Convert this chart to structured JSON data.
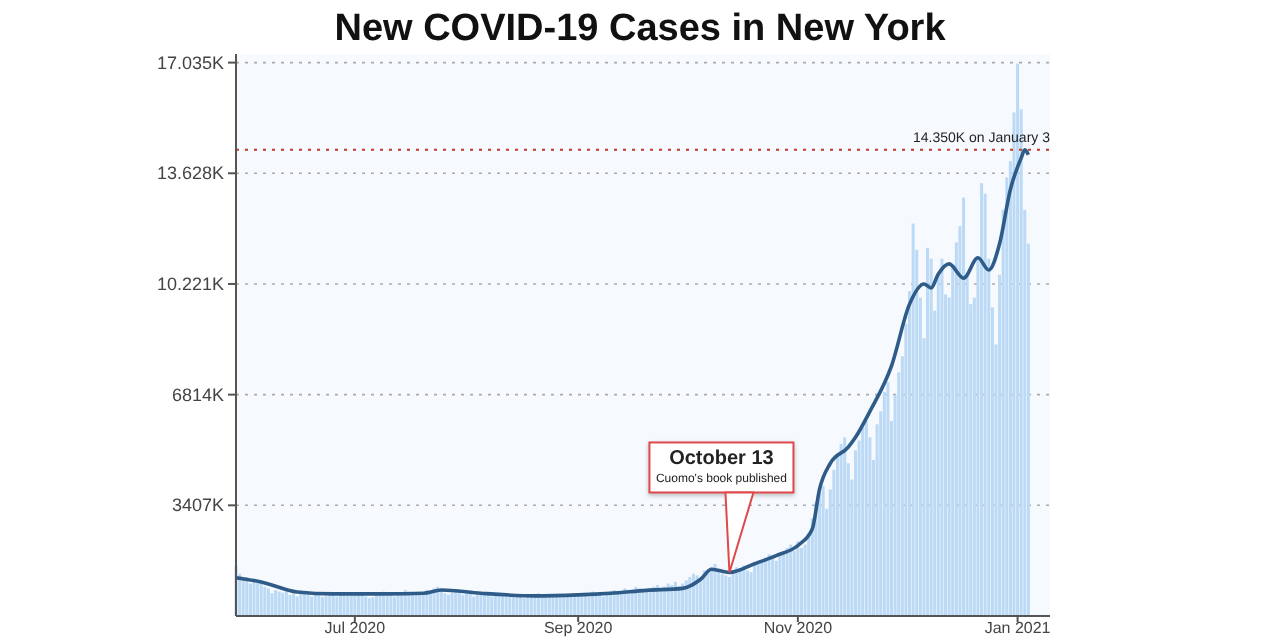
{
  "chart_data": {
    "type": "bar",
    "title": "New COVID-19 Cases in New York",
    "x": [
      "2020-05-29",
      "2020-05-30",
      "2020-05-31",
      "2020-06-01",
      "2020-06-02",
      "2020-06-03",
      "2020-06-04",
      "2020-06-05",
      "2020-06-06",
      "2020-06-07",
      "2020-06-08",
      "2020-06-09",
      "2020-06-10",
      "2020-06-11",
      "2020-06-12",
      "2020-06-13",
      "2020-06-14",
      "2020-06-15",
      "2020-06-16",
      "2020-06-17",
      "2020-06-18",
      "2020-06-19",
      "2020-06-20",
      "2020-06-21",
      "2020-06-22",
      "2020-06-23",
      "2020-06-24",
      "2020-06-25",
      "2020-06-26",
      "2020-06-27",
      "2020-06-28",
      "2020-06-29",
      "2020-06-30",
      "2020-07-01",
      "2020-07-02",
      "2020-07-03",
      "2020-07-04",
      "2020-07-05",
      "2020-07-06",
      "2020-07-07",
      "2020-07-08",
      "2020-07-09",
      "2020-07-10",
      "2020-07-11",
      "2020-07-12",
      "2020-07-13",
      "2020-07-14",
      "2020-07-15",
      "2020-07-16",
      "2020-07-17",
      "2020-07-18",
      "2020-07-19",
      "2020-07-20",
      "2020-07-21",
      "2020-07-22",
      "2020-07-23",
      "2020-07-24",
      "2020-07-25",
      "2020-07-26",
      "2020-07-27",
      "2020-07-28",
      "2020-07-29",
      "2020-07-30",
      "2020-07-31",
      "2020-08-01",
      "2020-08-02",
      "2020-08-03",
      "2020-08-04",
      "2020-08-05",
      "2020-08-06",
      "2020-08-07",
      "2020-08-08",
      "2020-08-09",
      "2020-08-10",
      "2020-08-11",
      "2020-08-12",
      "2020-08-13",
      "2020-08-14",
      "2020-08-15",
      "2020-08-16",
      "2020-08-17",
      "2020-08-18",
      "2020-08-19",
      "2020-08-20",
      "2020-08-21",
      "2020-08-22",
      "2020-08-23",
      "2020-08-24",
      "2020-08-25",
      "2020-08-26",
      "2020-08-27",
      "2020-08-28",
      "2020-08-29",
      "2020-08-30",
      "2020-08-31",
      "2020-09-01",
      "2020-09-02",
      "2020-09-03",
      "2020-09-04",
      "2020-09-05",
      "2020-09-06",
      "2020-09-07",
      "2020-09-08",
      "2020-09-09",
      "2020-09-10",
      "2020-09-11",
      "2020-09-12",
      "2020-09-13",
      "2020-09-14",
      "2020-09-15",
      "2020-09-16",
      "2020-09-17",
      "2020-09-18",
      "2020-09-19",
      "2020-09-20",
      "2020-09-21",
      "2020-09-22",
      "2020-09-23",
      "2020-09-24",
      "2020-09-25",
      "2020-09-26",
      "2020-09-27",
      "2020-09-28",
      "2020-09-29",
      "2020-09-30",
      "2020-10-01",
      "2020-10-02",
      "2020-10-03",
      "2020-10-04",
      "2020-10-05",
      "2020-10-06",
      "2020-10-07",
      "2020-10-08",
      "2020-10-09",
      "2020-10-10",
      "2020-10-11",
      "2020-10-12",
      "2020-10-13",
      "2020-10-14",
      "2020-10-15",
      "2020-10-16",
      "2020-10-17",
      "2020-10-18",
      "2020-10-19",
      "2020-10-20",
      "2020-10-21",
      "2020-10-22",
      "2020-10-23",
      "2020-10-24",
      "2020-10-25",
      "2020-10-26",
      "2020-10-27",
      "2020-10-28",
      "2020-10-29",
      "2020-10-30",
      "2020-10-31",
      "2020-11-01",
      "2020-11-02",
      "2020-11-03",
      "2020-11-04",
      "2020-11-05",
      "2020-11-06",
      "2020-11-07",
      "2020-11-08",
      "2020-11-09",
      "2020-11-10",
      "2020-11-11",
      "2020-11-12",
      "2020-11-13",
      "2020-11-14",
      "2020-11-15",
      "2020-11-16",
      "2020-11-17",
      "2020-11-18",
      "2020-11-19",
      "2020-11-20",
      "2020-11-21",
      "2020-11-22",
      "2020-11-23",
      "2020-11-24",
      "2020-11-25",
      "2020-11-26",
      "2020-11-27",
      "2020-11-28",
      "2020-11-29",
      "2020-11-30",
      "2020-12-01",
      "2020-12-02",
      "2020-12-03",
      "2020-12-04",
      "2020-12-05",
      "2020-12-06",
      "2020-12-07",
      "2020-12-08",
      "2020-12-09",
      "2020-12-10",
      "2020-12-11",
      "2020-12-12",
      "2020-12-13",
      "2020-12-14",
      "2020-12-15",
      "2020-12-16",
      "2020-12-17",
      "2020-12-18",
      "2020-12-19",
      "2020-12-20",
      "2020-12-21",
      "2020-12-22",
      "2020-12-23",
      "2020-12-24",
      "2020-12-25",
      "2020-12-26",
      "2020-12-27",
      "2020-12-28",
      "2020-12-29",
      "2020-12-30",
      "2020-12-31",
      "2021-01-01",
      "2021-01-02",
      "2021-01-03",
      "2021-01-04"
    ],
    "series": [
      {
        "color": "#bcdaf5",
        "values": [
          1550,
          1300,
          1100,
          1200,
          1000,
          1150,
          1100,
          1050,
          900,
          850,
          700,
          800,
          750,
          720,
          800,
          650,
          700,
          600,
          680,
          720,
          650,
          600,
          700,
          650,
          580,
          620,
          700,
          650,
          600,
          700,
          680,
          620,
          700,
          650,
          700,
          720,
          600,
          550,
          580,
          650,
          700,
          750,
          680,
          720,
          600,
          650,
          700,
          800,
          750,
          700,
          680,
          650,
          720,
          800,
          750,
          850,
          900,
          800,
          700,
          650,
          720,
          780,
          700,
          650,
          700,
          750,
          600,
          650,
          700,
          720,
          680,
          600,
          650,
          700,
          620,
          700,
          650,
          600,
          680,
          620,
          550,
          600,
          650,
          620,
          700,
          600,
          580,
          650,
          620,
          600,
          640,
          650,
          600,
          620,
          700,
          650,
          700,
          680,
          600,
          750,
          700,
          650,
          600,
          680,
          750,
          800,
          700,
          750,
          850,
          700,
          800,
          900,
          850,
          750,
          800,
          850,
          900,
          950,
          800,
          900,
          1000,
          950,
          1050,
          900,
          1000,
          1100,
          1200,
          1300,
          1250,
          1150,
          1400,
          1350,
          1500,
          1600,
          1450,
          1300,
          1250,
          1200,
          1400,
          1500,
          1450,
          1550,
          1400,
          1350,
          1600,
          1700,
          1650,
          1800,
          1900,
          1750,
          1700,
          1900,
          2000,
          2100,
          2200,
          2000,
          2300,
          2100,
          2200,
          2500,
          3000,
          3500,
          3800,
          4000,
          3300,
          3900,
          4500,
          5000,
          5300,
          5500,
          4700,
          4200,
          5100,
          5400,
          5800,
          6000,
          5500,
          4800,
          5900,
          6300,
          6900,
          7200,
          6000,
          6800,
          7500,
          8000,
          9000,
          10000,
          12080,
          11270,
          9800,
          8550,
          11330,
          11000,
          9400,
          10500,
          11000,
          9900,
          9800,
          10800,
          11500,
          12000,
          12880,
          10500,
          9600,
          9800,
          11000,
          13320,
          13000,
          11000,
          9500,
          8360,
          10500,
          12500,
          13500,
          14000,
          15500,
          17000,
          15600,
          12500,
          11460
        ]
      },
      {
        "type": "line",
        "color": "#2e5b88",
        "x": [
          "2020-05-29",
          "2020-06-05",
          "2020-06-15",
          "2020-06-25",
          "2020-07-10",
          "2020-07-20",
          "2020-07-25",
          "2020-08-05",
          "2020-08-20",
          "2020-09-01",
          "2020-09-10",
          "2020-09-20",
          "2020-09-30",
          "2020-10-05",
          "2020-10-08",
          "2020-10-13",
          "2020-10-20",
          "2020-10-26",
          "2020-11-01",
          "2020-11-05",
          "2020-11-07",
          "2020-11-10",
          "2020-11-15",
          "2020-11-17",
          "2020-11-21",
          "2020-11-27",
          "2020-12-02",
          "2020-12-06",
          "2020-12-08",
          "2020-12-10",
          "2020-12-13",
          "2020-12-17",
          "2020-12-21",
          "2020-12-24",
          "2020-12-27",
          "2020-12-30",
          "2021-01-02",
          "2021-01-03",
          "2021-01-04"
        ],
        "values": [
          1180,
          1050,
          740,
          680,
          680,
          700,
          800,
          700,
          620,
          650,
          700,
          790,
          850,
          1130,
          1440,
          1340,
          1610,
          1860,
          2170,
          2680,
          3900,
          4700,
          5200,
          5500,
          6300,
          7700,
          9600,
          10220,
          10100,
          10530,
          10840,
          10400,
          11030,
          10650,
          11460,
          13130,
          14100,
          14350,
          14200
        ]
      }
    ],
    "xlim": [
      "2020-05-29",
      "2021-01-10"
    ],
    "xticks": [
      {
        "value": "2020-07-01",
        "label": "Jul 2020"
      },
      {
        "value": "2020-09-01",
        "label": "Sep 2020"
      },
      {
        "value": "2020-11-01",
        "label": "Nov 2020"
      },
      {
        "value": "2021-01-01",
        "label": "Jan 2021"
      }
    ],
    "ylim": [
      0,
      17300
    ],
    "yticks": [
      {
        "value": 3407,
        "label": "3407K"
      },
      {
        "value": 6814,
        "label": "6814K"
      },
      {
        "value": 10221,
        "label": "10.221K"
      },
      {
        "value": 13628,
        "label": "13.628K"
      },
      {
        "value": 17035,
        "label": "17.035K"
      }
    ],
    "grid": "y",
    "ref_lines": [
      {
        "axis": "y",
        "value": 14350,
        "label": "14.350K on January 3",
        "color": "#c0392b",
        "line_style": "dotted"
      }
    ],
    "annotations": [
      {
        "text": "October 13",
        "x": "2020-10-13",
        "y": 1340
      },
      "Cuomo's book published"
    ]
  }
}
